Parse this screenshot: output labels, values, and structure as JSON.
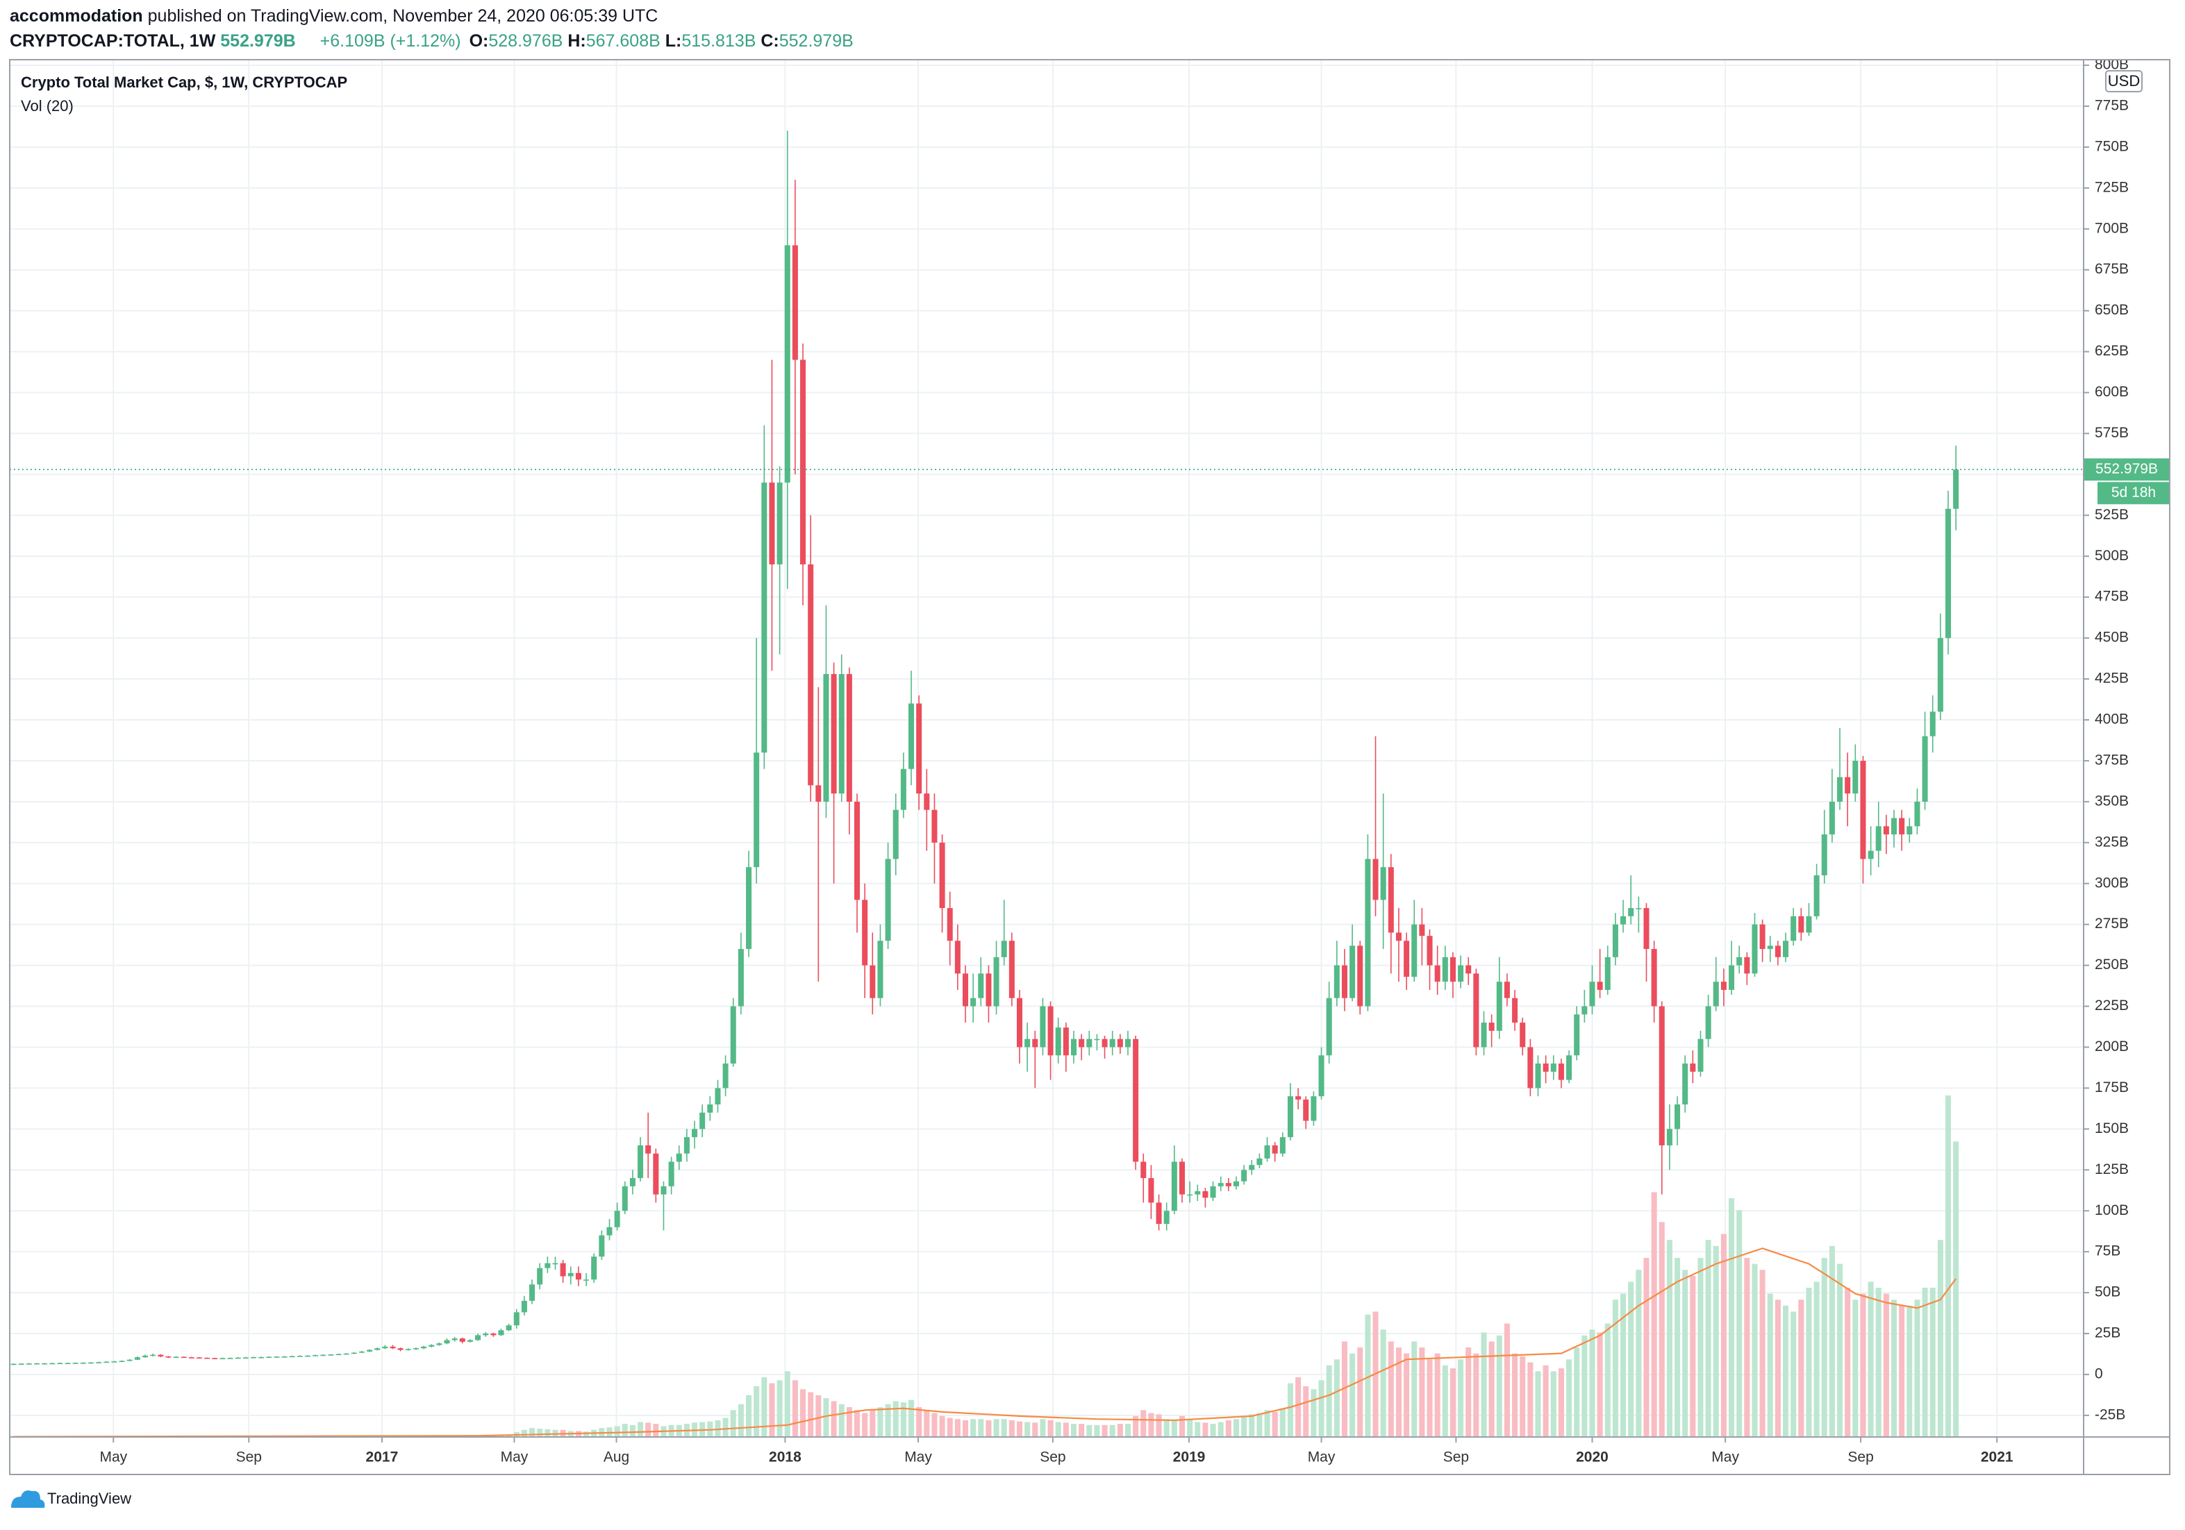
{
  "header": {
    "author": "accommodation",
    "published": "published on TradingView.com, November 24, 2020 06:05:39 UTC",
    "symbol": "CRYPTOCAP:TOTAL, 1W",
    "last": "552.979B",
    "change": "+6.109B (+1.12%)",
    "ohlc": [
      {
        "key": "O:",
        "value": "528.976B"
      },
      {
        "key": "H:",
        "value": "567.608B"
      },
      {
        "key": "L:",
        "value": "515.813B"
      },
      {
        "key": "C:",
        "value": "552.979B"
      }
    ]
  },
  "footer": {
    "logo": "TradingView"
  },
  "chart_data": {
    "type": "candlestick",
    "title": "Crypto Total Market Cap, $, 1W, CRYPTOCAP",
    "volume_title": "Vol (20)",
    "currency": "USD",
    "last_price_label": "552.979B",
    "countdown": "5d 18h",
    "grid": true,
    "up_color": "#53b987",
    "down_color": "#eb4d5c",
    "volume_up_color": "#bde6d1",
    "volume_down_color": "#f8bcc2",
    "vol_ma_color": "#f68a43",
    "xlim": [
      -0.5,
      267.5
    ],
    "xticks": [
      {
        "value": 12.9,
        "label": "May"
      },
      {
        "value": 30.4,
        "label": "Sep"
      },
      {
        "value": 47.6,
        "label": "2017"
      },
      {
        "value": 64.7,
        "label": "May"
      },
      {
        "value": 77.9,
        "label": "Aug"
      },
      {
        "value": 99.7,
        "label": "2018"
      },
      {
        "value": 116.9,
        "label": "May"
      },
      {
        "value": 134.3,
        "label": "Sep"
      },
      {
        "value": 151.9,
        "label": "2019"
      },
      {
        "value": 169.0,
        "label": "May"
      },
      {
        "value": 186.4,
        "label": "Sep"
      },
      {
        "value": 204.0,
        "label": "2020"
      },
      {
        "value": 221.2,
        "label": "May"
      },
      {
        "value": 238.7,
        "label": "Sep"
      },
      {
        "value": 256.3,
        "label": "2021"
      }
    ],
    "ylim": [
      -38.2,
      803.4
    ],
    "yticks": [
      {
        "value": -25,
        "label": "-25B"
      },
      0,
      {
        "value": 25,
        "label": "25B"
      },
      {
        "value": 50,
        "label": "50B"
      },
      {
        "value": 75,
        "label": "75B"
      },
      {
        "value": 100,
        "label": "100B"
      },
      {
        "value": 125,
        "label": "125B"
      },
      {
        "value": 150,
        "label": "150B"
      },
      {
        "value": 175,
        "label": "175B"
      },
      {
        "value": 200,
        "label": "200B"
      },
      {
        "value": 225,
        "label": "225B"
      },
      {
        "value": 250,
        "label": "250B"
      },
      {
        "value": 275,
        "label": "275B"
      },
      {
        "value": 300,
        "label": "300B"
      },
      {
        "value": 325,
        "label": "325B"
      },
      {
        "value": 350,
        "label": "350B"
      },
      {
        "value": 375,
        "label": "375B"
      },
      {
        "value": 400,
        "label": "400B"
      },
      {
        "value": 425,
        "label": "425B"
      },
      {
        "value": 450,
        "label": "450B"
      },
      {
        "value": 475,
        "label": "475B"
      },
      {
        "value": 500,
        "label": "500B"
      },
      {
        "value": 525,
        "label": "525B"
      },
      {
        "value": 550,
        "label": "550B"
      },
      {
        "value": 575,
        "label": "575B"
      },
      {
        "value": 600,
        "label": "600B"
      },
      {
        "value": 625,
        "label": "625B"
      },
      {
        "value": 650,
        "label": "650B"
      },
      {
        "value": 675,
        "label": "675B"
      },
      {
        "value": 700,
        "label": "700B"
      },
      {
        "value": 725,
        "label": "725B"
      },
      {
        "value": 750,
        "label": "750B"
      },
      {
        "value": 775,
        "label": "775B"
      },
      {
        "value": 800,
        "label": "800B"
      }
    ],
    "open": [
      6.4,
      6.5,
      6.6,
      6.7,
      6.8,
      6.8,
      6.9,
      7.0,
      7.0,
      7.1,
      7.2,
      7.3,
      7.5,
      7.8,
      8.0,
      8.3,
      9.0,
      10.5,
      11.5,
      12.0,
      11.0,
      10.5,
      10.8,
      10.5,
      10.4,
      10.2,
      10.0,
      9.8,
      10.0,
      10.1,
      10.3,
      10.4,
      10.6,
      10.6,
      10.8,
      10.9,
      11.0,
      11.2,
      11.4,
      11.5,
      11.8,
      12.0,
      12.2,
      12.5,
      12.8,
      13.3,
      14.0,
      15.0,
      16.0,
      17,
      16,
      15,
      15.5,
      16,
      17,
      18,
      19,
      21,
      22,
      20,
      21,
      24,
      25,
      24,
      27,
      30,
      38,
      45,
      55,
      65,
      68,
      68,
      60,
      62,
      58,
      58,
      72,
      85,
      90,
      100,
      115,
      120,
      140,
      135,
      110,
      115,
      130,
      135,
      145,
      150,
      160,
      165,
      175,
      190,
      225,
      260,
      310,
      380,
      545,
      495,
      545,
      690,
      620,
      495,
      360,
      350,
      428,
      355,
      428,
      350,
      290,
      250,
      230,
      265,
      315,
      345,
      370,
      410,
      355,
      345,
      325,
      285,
      265,
      245,
      225,
      230,
      245,
      225,
      255,
      265,
      230,
      200,
      205,
      200,
      225,
      195,
      212,
      195,
      205,
      200,
      205,
      205,
      200,
      205,
      200,
      205,
      130,
      120,
      105,
      92,
      100,
      130,
      110,
      110,
      112,
      108,
      115,
      117,
      115,
      118,
      125,
      128,
      132,
      140,
      135,
      145,
      170,
      168,
      155,
      170,
      195,
      230,
      250,
      230,
      262,
      225,
      315,
      290,
      310,
      270,
      265,
      243,
      275,
      268,
      250,
      240,
      255,
      240,
      250,
      245,
      200,
      215,
      210,
      240,
      230,
      215,
      200,
      175,
      190,
      185,
      190,
      180,
      195,
      220,
      225,
      240,
      235,
      255,
      275,
      280,
      285,
      285,
      260,
      225,
      140,
      150,
      165,
      190,
      185,
      205,
      225,
      240,
      235,
      250,
      255,
      245,
      275,
      260,
      262,
      255,
      265,
      280,
      270,
      280,
      305,
      330,
      350,
      365,
      355,
      375,
      315,
      320,
      335,
      330,
      340,
      330,
      335,
      350,
      390,
      405,
      450,
      528.976
    ],
    "high": [
      6.8,
      6.9,
      7.0,
      7.1,
      7.1,
      7.2,
      7.3,
      7.3,
      7.4,
      7.5,
      7.6,
      7.8,
      8.1,
      8.3,
      8.6,
      9.4,
      11.0,
      12.2,
      12.8,
      12.4,
      11.3,
      11.2,
      11.0,
      10.8,
      10.6,
      10.4,
      10.2,
      10.3,
      10.4,
      10.6,
      10.7,
      10.9,
      11.0,
      11.1,
      11.2,
      11.3,
      11.5,
      11.7,
      11.8,
      12.1,
      12.3,
      12.5,
      12.8,
      13.1,
      13.6,
      14.4,
      15.4,
      16.5,
      18,
      18,
      16.5,
      16,
      16.5,
      17.5,
      18.5,
      19.5,
      22,
      23,
      22.5,
      21.5,
      25,
      26,
      25.5,
      28,
      31,
      40,
      48,
      58,
      68,
      72,
      72,
      70,
      66,
      66,
      62,
      74,
      88,
      95,
      105,
      118,
      125,
      145,
      160,
      138,
      118,
      133,
      140,
      150,
      155,
      165,
      170,
      180,
      195,
      230,
      270,
      320,
      450,
      580,
      620,
      555,
      760,
      730,
      630,
      525,
      420,
      470,
      435,
      440,
      432,
      355,
      300,
      270,
      275,
      325,
      355,
      380,
      430,
      415,
      370,
      355,
      330,
      295,
      275,
      250,
      245,
      255,
      250,
      265,
      290,
      270,
      235,
      215,
      210,
      230,
      228,
      218,
      215,
      210,
      208,
      210,
      208,
      207,
      210,
      208,
      210,
      207,
      135,
      128,
      110,
      105,
      140,
      132,
      118,
      116,
      114,
      118,
      121,
      120,
      121,
      128,
      131,
      135,
      145,
      142,
      148,
      178,
      175,
      170,
      173,
      200,
      240,
      265,
      260,
      275,
      265,
      330,
      390,
      355,
      318,
      285,
      270,
      290,
      285,
      272,
      262,
      262,
      258,
      256,
      255,
      248,
      222,
      220,
      255,
      245,
      235,
      218,
      205,
      195,
      195,
      195,
      193,
      198,
      225,
      235,
      250,
      260,
      262,
      282,
      290,
      305,
      292,
      288,
      265,
      228,
      165,
      170,
      195,
      198,
      210,
      232,
      255,
      248,
      265,
      262,
      258,
      282,
      278,
      268,
      265,
      270,
      285,
      285,
      288,
      312,
      345,
      370,
      395,
      380,
      385,
      378,
      335,
      350,
      342,
      345,
      345,
      340,
      358,
      405,
      415,
      465,
      540,
      567.608
    ],
    "low": [
      6.1,
      6.2,
      6.3,
      6.4,
      6.5,
      6.5,
      6.6,
      6.7,
      6.7,
      6.8,
      6.9,
      7.0,
      7.2,
      7.5,
      7.7,
      8.0,
      8.8,
      10.2,
      11.0,
      10.5,
      10.0,
      10.2,
      10.2,
      10.1,
      9.9,
      9.7,
      9.4,
      9.5,
      9.8,
      9.9,
      10.1,
      10.2,
      10.3,
      10.3,
      10.5,
      10.6,
      10.7,
      10.9,
      11.1,
      11.2,
      11.5,
      11.7,
      11.9,
      12.2,
      12.5,
      13.0,
      13.7,
      14.6,
      15.5,
      15.5,
      14.2,
      14.5,
      15,
      15.5,
      16.5,
      17.5,
      18.5,
      20,
      19,
      19.5,
      20.5,
      23,
      23,
      23.5,
      26.5,
      28,
      36,
      43,
      52,
      62,
      64,
      56,
      55,
      54,
      54,
      56,
      70,
      82,
      88,
      98,
      110,
      118,
      120,
      105,
      88,
      110,
      125,
      130,
      138,
      145,
      155,
      160,
      170,
      188,
      220,
      255,
      300,
      370,
      430,
      440,
      480,
      550,
      470,
      350,
      240,
      340,
      300,
      350,
      330,
      270,
      230,
      220,
      225,
      260,
      305,
      340,
      360,
      345,
      320,
      300,
      270,
      250,
      235,
      215,
      215,
      225,
      215,
      220,
      250,
      225,
      190,
      185,
      175,
      195,
      180,
      190,
      185,
      190,
      192,
      195,
      198,
      193,
      195,
      196,
      195,
      125,
      105,
      95,
      88,
      88,
      98,
      105,
      105,
      106,
      102,
      106,
      112,
      112,
      113,
      116,
      122,
      126,
      130,
      130,
      133,
      143,
      162,
      150,
      152,
      168,
      190,
      225,
      222,
      228,
      220,
      222,
      280,
      260,
      245,
      240,
      235,
      240,
      250,
      235,
      232,
      235,
      230,
      236,
      238,
      195,
      195,
      200,
      205,
      225,
      210,
      195,
      170,
      170,
      178,
      180,
      175,
      178,
      192,
      215,
      220,
      230,
      232,
      250,
      270,
      275,
      270,
      240,
      215,
      110,
      125,
      140,
      160,
      178,
      182,
      200,
      222,
      225,
      232,
      245,
      238,
      243,
      252,
      252,
      250,
      252,
      262,
      265,
      268,
      278,
      300,
      325,
      345,
      335,
      350,
      300,
      305,
      310,
      318,
      322,
      320,
      325,
      330,
      345,
      380,
      400,
      440,
      515.813
    ],
    "close": [
      6.5,
      6.6,
      6.7,
      6.8,
      6.8,
      6.9,
      7.0,
      7.0,
      7.1,
      7.2,
      7.3,
      7.5,
      7.8,
      8.0,
      8.3,
      9.0,
      10.5,
      11.5,
      12.0,
      11.0,
      10.5,
      10.8,
      10.5,
      10.4,
      10.2,
      10.0,
      9.8,
      10.0,
      10.1,
      10.3,
      10.4,
      10.6,
      10.6,
      10.8,
      10.9,
      11.0,
      11.2,
      11.4,
      11.5,
      11.8,
      12.0,
      12.2,
      12.5,
      12.8,
      13.3,
      14.0,
      15.0,
      16.0,
      17,
      16,
      15,
      15.5,
      16,
      17,
      18,
      19,
      21,
      22,
      20,
      21,
      24,
      25,
      24,
      27,
      30,
      38,
      45,
      55,
      65,
      68,
      68,
      60,
      62,
      58,
      58,
      72,
      85,
      90,
      100,
      115,
      120,
      140,
      135,
      110,
      115,
      130,
      135,
      145,
      150,
      160,
      165,
      175,
      190,
      225,
      260,
      310,
      380,
      545,
      495,
      545,
      690,
      620,
      495,
      360,
      350,
      428,
      355,
      428,
      350,
      290,
      250,
      230,
      265,
      315,
      345,
      370,
      410,
      355,
      345,
      325,
      285,
      265,
      245,
      225,
      230,
      245,
      225,
      255,
      265,
      230,
      200,
      205,
      200,
      225,
      195,
      212,
      195,
      205,
      200,
      205,
      205,
      200,
      205,
      200,
      205,
      130,
      120,
      105,
      92,
      100,
      130,
      110,
      110,
      112,
      108,
      115,
      117,
      115,
      118,
      125,
      128,
      132,
      140,
      135,
      145,
      170,
      168,
      155,
      170,
      195,
      230,
      250,
      230,
      262,
      225,
      315,
      290,
      310,
      270,
      265,
      243,
      275,
      268,
      250,
      240,
      255,
      240,
      250,
      245,
      200,
      215,
      210,
      240,
      230,
      215,
      200,
      175,
      190,
      185,
      190,
      180,
      195,
      220,
      225,
      240,
      235,
      255,
      275,
      280,
      285,
      285,
      260,
      225,
      140,
      150,
      165,
      190,
      185,
      205,
      225,
      240,
      235,
      250,
      255,
      245,
      275,
      260,
      262,
      255,
      265,
      280,
      270,
      280,
      305,
      330,
      350,
      365,
      355,
      375,
      315,
      320,
      335,
      330,
      340,
      330,
      335,
      350,
      390,
      405,
      450,
      528.976,
      552.979
    ],
    "volume_lim": [
      0,
      2307
    ],
    "volume": [
      0.4,
      0.4,
      0.4,
      0.4,
      0.4,
      0.4,
      0.5,
      0.5,
      0.5,
      0.5,
      0.5,
      0.5,
      0.6,
      0.6,
      0.8,
      1.0,
      1.2,
      1.0,
      0.8,
      0.7,
      0.7,
      0.6,
      0.6,
      0.6,
      0.6,
      0.6,
      0.6,
      0.6,
      0.6,
      0.6,
      0.6,
      0.6,
      0.6,
      0.6,
      0.6,
      0.7,
      0.7,
      0.7,
      0.7,
      0.7,
      0.7,
      0.7,
      0.8,
      0.8,
      0.8,
      0.9,
      1.0,
      1.0,
      1.2,
      1.1,
      1.0,
      1.0,
      1.1,
      1.2,
      1.3,
      1.4,
      1.6,
      1.8,
      1.7,
      1.8,
      2.2,
      2.5,
      2.5,
      3,
      4,
      8,
      12,
      15,
      14,
      13,
      12,
      12,
      10,
      10,
      9,
      12,
      15,
      16,
      18,
      22,
      20,
      25,
      24,
      22,
      18,
      20,
      20,
      22,
      24,
      25,
      26,
      28,
      32,
      45,
      55,
      70,
      85,
      100,
      90,
      95,
      110,
      95,
      80,
      75,
      70,
      65,
      60,
      55,
      50,
      45,
      40,
      45,
      50,
      55,
      60,
      58,
      62,
      50,
      45,
      40,
      35,
      32,
      30,
      28,
      30,
      30,
      28,
      30,
      30,
      28,
      26,
      25,
      24,
      30,
      28,
      25,
      24,
      22,
      22,
      20,
      20,
      20,
      20,
      22,
      22,
      35,
      45,
      40,
      38,
      30,
      28,
      35,
      30,
      25,
      24,
      22,
      25,
      28,
      30,
      35,
      38,
      40,
      45,
      42,
      48,
      90,
      100,
      85,
      80,
      95,
      120,
      130,
      160,
      140,
      150,
      205,
      210,
      180,
      160,
      150,
      140,
      160,
      150,
      130,
      140,
      120,
      115,
      130,
      150,
      140,
      175,
      160,
      170,
      190,
      140,
      135,
      125,
      110,
      120,
      110,
      115,
      130,
      150,
      170,
      180,
      175,
      190,
      230,
      240,
      260,
      280,
      300,
      410,
      360,
      330,
      300,
      280,
      270,
      300,
      330,
      320,
      340,
      400,
      380,
      300,
      290,
      280,
      240,
      230,
      220,
      210,
      230,
      250,
      260,
      300,
      320,
      290,
      250,
      230,
      240,
      260,
      250,
      240,
      230,
      220,
      220,
      230,
      250,
      250,
      330,
      572,
      495
    ],
    "vol_ma": {
      "x": [
        0,
        60,
        80,
        90,
        100,
        105,
        110,
        115,
        120,
        130,
        140,
        150,
        160,
        165,
        170,
        175,
        180,
        190,
        200,
        205,
        210,
        215,
        220,
        226,
        232,
        238,
        242,
        246,
        249,
        251
      ],
      "values": [
        0.5,
        2,
        8,
        12,
        20,
        35,
        45,
        48,
        42,
        35,
        30,
        28,
        35,
        50,
        70,
        100,
        130,
        135,
        140,
        170,
        220,
        260,
        290,
        316,
        290,
        240,
        225,
        216,
        230,
        265
      ]
    }
  }
}
